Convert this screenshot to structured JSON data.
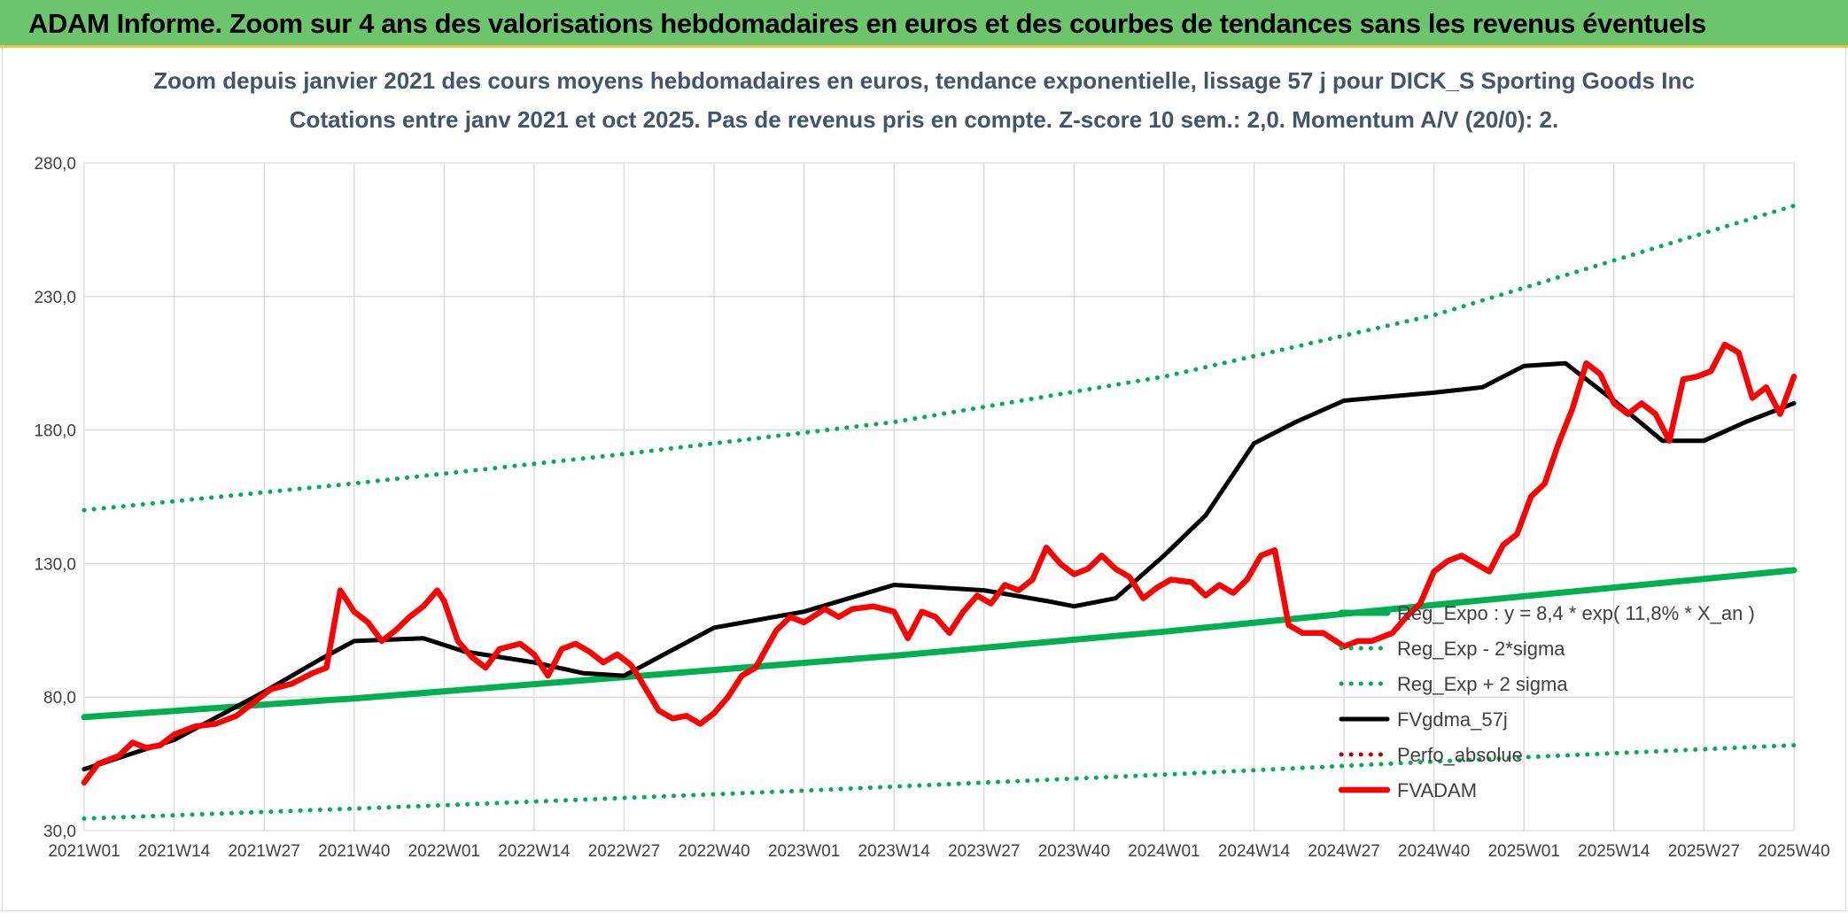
{
  "header": {
    "banner": "ADAM Informe. Zoom sur 4 ans des valorisations hebdomadaires en euros et des courbes de tendances sans les revenus éventuels"
  },
  "colors": {
    "banner_bg": "#6cc46c",
    "banner_border": "#e8c832",
    "reg": "#00b050",
    "fvgdma": "#000000",
    "fvadam": "#ff0000",
    "perfo": "#c00000",
    "grid": "#d9d9d9",
    "title": "#44546a"
  },
  "chart_data": {
    "type": "line",
    "title_line1": "Zoom depuis janvier 2021 des cours moyens hebdomadaires en euros, tendance exponentielle, lissage 57 j pour DICK_S Sporting Goods Inc",
    "title_line2": "Cotations entre janv 2021 et oct 2025. Pas de revenus pris en compte. Z-score 10 sem.: 2,0. Momentum A/V (20/0): 2.",
    "ylim": [
      30,
      280
    ],
    "yticks": [
      30,
      80,
      130,
      180,
      230,
      280
    ],
    "ytick_labels": [
      "30,0",
      "80,0",
      "130,0",
      "180,0",
      "230,0",
      "280,0"
    ],
    "xlim": [
      1,
      248
    ],
    "x_unit": "week index (1 = 2021W01)",
    "x_tick_positions": [
      1,
      14,
      27,
      40,
      53,
      66,
      79,
      92,
      105,
      118,
      131,
      144,
      157,
      170,
      183,
      196,
      209,
      222,
      235,
      248
    ],
    "x_tick_labels": [
      "2021W01",
      "2021W14",
      "2021W27",
      "2021W40",
      "2022W01",
      "2022W14",
      "2022W27",
      "2022W40",
      "2023W01",
      "2023W14",
      "2023W27",
      "2023W40",
      "2024W01",
      "2024W14",
      "2024W27",
      "2024W40",
      "2025W01",
      "2025W14",
      "2025W27",
      "2025W40"
    ],
    "grid": true,
    "legend_position": "bottom-right inside plot",
    "series": [
      {
        "name": "Reg_Expo : y = 8,4 * exp( 11,8% *  X_an )",
        "style": "solid-thick",
        "color": "#00b050",
        "points": [
          [
            1,
            72.5
          ],
          [
            40,
            79.5
          ],
          [
            79,
            87.5
          ],
          [
            118,
            95.5
          ],
          [
            157,
            104.5
          ],
          [
            196,
            114.5
          ],
          [
            248,
            127.5
          ]
        ]
      },
      {
        "name": "Reg_Exp - 2*sigma",
        "style": "dotted",
        "color": "#00b050",
        "points": [
          [
            1,
            34.5
          ],
          [
            53,
            39.5
          ],
          [
            105,
            45
          ],
          [
            157,
            51
          ],
          [
            209,
            57.5
          ],
          [
            248,
            62
          ]
        ]
      },
      {
        "name": "Reg_Exp + 2 sigma",
        "style": "dotted",
        "color": "#00b050",
        "points": [
          [
            1,
            150
          ],
          [
            40,
            160
          ],
          [
            79,
            171
          ],
          [
            118,
            183
          ],
          [
            157,
            200
          ],
          [
            196,
            223
          ],
          [
            248,
            264
          ]
        ]
      },
      {
        "name": "FVgdma_57j",
        "style": "solid",
        "color": "#000000",
        "points": [
          [
            1,
            53
          ],
          [
            14,
            64
          ],
          [
            27,
            82
          ],
          [
            35,
            94
          ],
          [
            40,
            101
          ],
          [
            50,
            102
          ],
          [
            56,
            97
          ],
          [
            66,
            93
          ],
          [
            73,
            89
          ],
          [
            79,
            88
          ],
          [
            92,
            106
          ],
          [
            105,
            112
          ],
          [
            118,
            122
          ],
          [
            131,
            120
          ],
          [
            140,
            116
          ],
          [
            144,
            114
          ],
          [
            150,
            117
          ],
          [
            157,
            133
          ],
          [
            163,
            148
          ],
          [
            170,
            175
          ],
          [
            176,
            183
          ],
          [
            183,
            191
          ],
          [
            196,
            194
          ],
          [
            203,
            196
          ],
          [
            209,
            204
          ],
          [
            215,
            205
          ],
          [
            222,
            191
          ],
          [
            229,
            176
          ],
          [
            235,
            176
          ],
          [
            241,
            183
          ],
          [
            248,
            190
          ]
        ]
      },
      {
        "name": "Perfo_absolue",
        "style": "dotted",
        "color": "#c00000",
        "points": []
      },
      {
        "name": "FVADAM",
        "style": "solid-thick",
        "color": "#ff0000",
        "points": [
          [
            1,
            48
          ],
          [
            3,
            55
          ],
          [
            6,
            58
          ],
          [
            8,
            63
          ],
          [
            10,
            61
          ],
          [
            12,
            62
          ],
          [
            14,
            66
          ],
          [
            17,
            69
          ],
          [
            20,
            70
          ],
          [
            23,
            73
          ],
          [
            26,
            79
          ],
          [
            28,
            83
          ],
          [
            31,
            85
          ],
          [
            34,
            89
          ],
          [
            36,
            91
          ],
          [
            38,
            120
          ],
          [
            40,
            112
          ],
          [
            42,
            108
          ],
          [
            44,
            101
          ],
          [
            46,
            105
          ],
          [
            48,
            110
          ],
          [
            50,
            114
          ],
          [
            52,
            120
          ],
          [
            53,
            116
          ],
          [
            55,
            101
          ],
          [
            57,
            95
          ],
          [
            59,
            91
          ],
          [
            61,
            98
          ],
          [
            64,
            100
          ],
          [
            66,
            96
          ],
          [
            68,
            88
          ],
          [
            70,
            98
          ],
          [
            72,
            100
          ],
          [
            74,
            97
          ],
          [
            76,
            93
          ],
          [
            78,
            96
          ],
          [
            80,
            92
          ],
          [
            81,
            88
          ],
          [
            84,
            75
          ],
          [
            86,
            72
          ],
          [
            88,
            73
          ],
          [
            90,
            70
          ],
          [
            92,
            74
          ],
          [
            94,
            80
          ],
          [
            96,
            88
          ],
          [
            98,
            91
          ],
          [
            101,
            105
          ],
          [
            103,
            110
          ],
          [
            105,
            108
          ],
          [
            108,
            113
          ],
          [
            110,
            110
          ],
          [
            112,
            113
          ],
          [
            115,
            114
          ],
          [
            118,
            112
          ],
          [
            120,
            102
          ],
          [
            122,
            112
          ],
          [
            124,
            110
          ],
          [
            126,
            104
          ],
          [
            128,
            112
          ],
          [
            130,
            118
          ],
          [
            132,
            115
          ],
          [
            134,
            122
          ],
          [
            136,
            120
          ],
          [
            138,
            124
          ],
          [
            140,
            136
          ],
          [
            142,
            130
          ],
          [
            144,
            126
          ],
          [
            146,
            128
          ],
          [
            148,
            133
          ],
          [
            150,
            128
          ],
          [
            152,
            125
          ],
          [
            154,
            117
          ],
          [
            156,
            121
          ],
          [
            158,
            124
          ],
          [
            161,
            123
          ],
          [
            163,
            118
          ],
          [
            165,
            122
          ],
          [
            167,
            119
          ],
          [
            169,
            124
          ],
          [
            171,
            133
          ],
          [
            173,
            135
          ],
          [
            175,
            107
          ],
          [
            177,
            104
          ],
          [
            180,
            104
          ],
          [
            183,
            99
          ],
          [
            185,
            101
          ],
          [
            187,
            101
          ],
          [
            190,
            104
          ],
          [
            192,
            110
          ],
          [
            194,
            115
          ],
          [
            196,
            127
          ],
          [
            198,
            131
          ],
          [
            200,
            133
          ],
          [
            202,
            130
          ],
          [
            204,
            127
          ],
          [
            206,
            137
          ],
          [
            208,
            141
          ],
          [
            210,
            155
          ],
          [
            212,
            160
          ],
          [
            214,
            175
          ],
          [
            216,
            188
          ],
          [
            218,
            205
          ],
          [
            220,
            201
          ],
          [
            222,
            190
          ],
          [
            224,
            186
          ],
          [
            226,
            190
          ],
          [
            228,
            186
          ],
          [
            230,
            176
          ],
          [
            232,
            199
          ],
          [
            234,
            200
          ],
          [
            236,
            202
          ],
          [
            238,
            212
          ],
          [
            240,
            209
          ],
          [
            242,
            192
          ],
          [
            244,
            196
          ],
          [
            246,
            186
          ],
          [
            248,
            200
          ]
        ]
      }
    ]
  }
}
